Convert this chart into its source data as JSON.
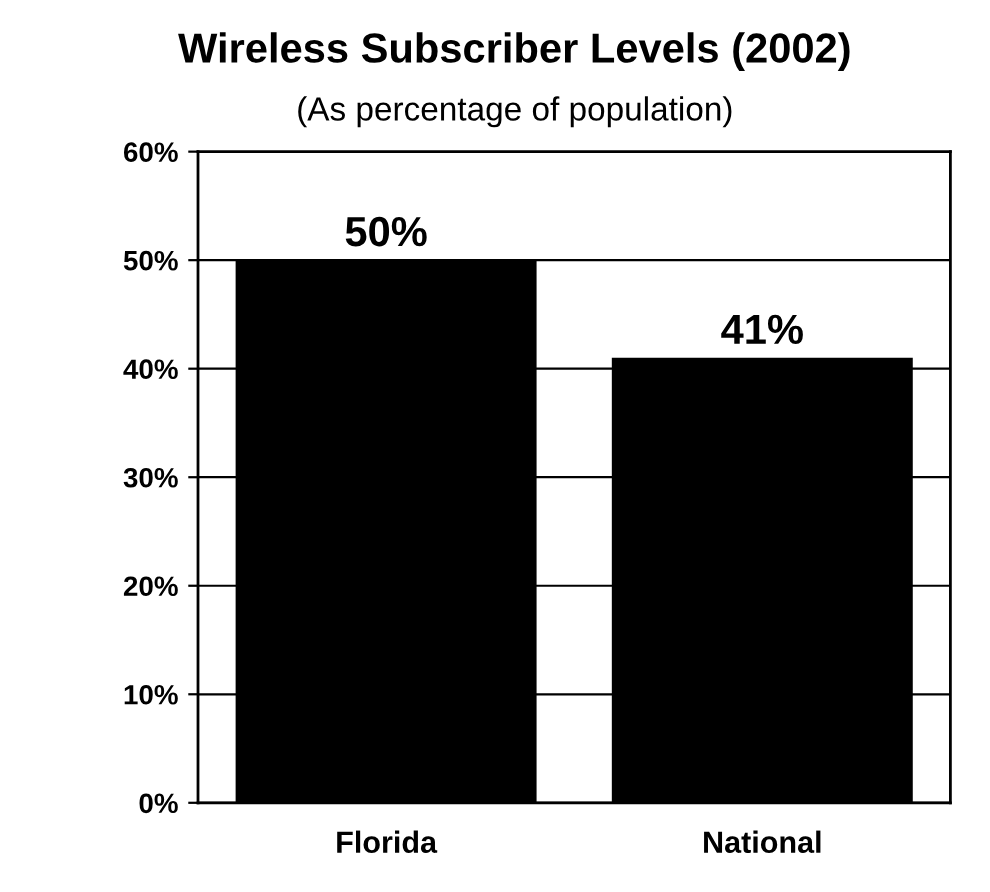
{
  "chart_data": {
    "type": "bar",
    "title": "Wireless Subscriber Levels (2002)",
    "subtitle": "(As percentage of population)",
    "categories": [
      "Florida",
      "National"
    ],
    "values": [
      50,
      41
    ],
    "value_labels": [
      "50%",
      "41%"
    ],
    "color": "#000000",
    "ylim": [
      0,
      60
    ],
    "yticks": [
      {
        "value": 0,
        "label": "0%"
      },
      {
        "value": 10,
        "label": "10%"
      },
      {
        "value": 20,
        "label": "20%"
      },
      {
        "value": 30,
        "label": "30%"
      },
      {
        "value": 40,
        "label": "40%"
      },
      {
        "value": 50,
        "label": "50%"
      },
      {
        "value": 60,
        "label": "60%"
      }
    ],
    "grid": "y"
  }
}
